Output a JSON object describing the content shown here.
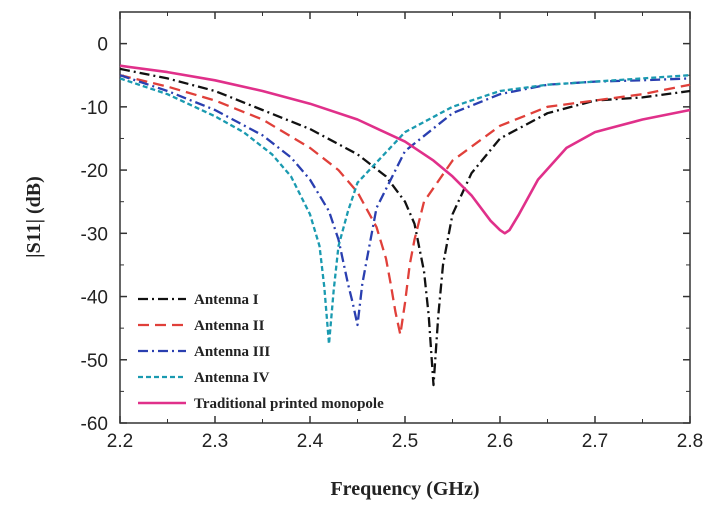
{
  "chart_data": {
    "type": "line",
    "xlabel": "Frequency (GHz)",
    "ylabel": "|S11| (dB)",
    "xlim": [
      2.2,
      2.8
    ],
    "ylim": [
      -60,
      5
    ],
    "xticks": [
      "2.2",
      "2.3",
      "2.4",
      "2.5",
      "2.6",
      "2.7",
      "2.8"
    ],
    "yticks": [
      "0",
      "-10",
      "-20",
      "-30",
      "-40",
      "-50",
      "-60"
    ],
    "legend_position": "bottom-left",
    "series": [
      {
        "name": "Antenna I",
        "color": "#111111",
        "dash": "dash-dot",
        "x": [
          2.2,
          2.25,
          2.3,
          2.35,
          2.4,
          2.45,
          2.48,
          2.5,
          2.51,
          2.52,
          2.525,
          2.53,
          2.535,
          2.54,
          2.55,
          2.57,
          2.6,
          2.65,
          2.7,
          2.75,
          2.8
        ],
        "y": [
          -4,
          -5.5,
          -7.5,
          -10.5,
          -13.5,
          -17.5,
          -21,
          -25,
          -28.5,
          -36,
          -43,
          -54,
          -43,
          -35,
          -27,
          -20.5,
          -15,
          -11,
          -9,
          -8.5,
          -7.5
        ]
      },
      {
        "name": "Antenna II",
        "color": "#e0403a",
        "dash": "dash",
        "x": [
          2.2,
          2.25,
          2.3,
          2.35,
          2.4,
          2.43,
          2.45,
          2.47,
          2.48,
          2.485,
          2.49,
          2.495,
          2.5,
          2.505,
          2.51,
          2.52,
          2.55,
          2.6,
          2.65,
          2.7,
          2.75,
          2.8
        ],
        "y": [
          -5,
          -6.8,
          -9,
          -12,
          -16.5,
          -20,
          -23.5,
          -29,
          -34,
          -38,
          -42.5,
          -46,
          -41,
          -35,
          -31,
          -25,
          -18.5,
          -13,
          -10,
          -9,
          -8,
          -6.5
        ]
      },
      {
        "name": "Antenna III",
        "color": "#2a3fb0",
        "dash": "dash-dot",
        "x": [
          2.2,
          2.25,
          2.3,
          2.35,
          2.38,
          2.4,
          2.42,
          2.43,
          2.44,
          2.445,
          2.45,
          2.455,
          2.46,
          2.47,
          2.5,
          2.55,
          2.6,
          2.65,
          2.7,
          2.75,
          2.8
        ],
        "y": [
          -5,
          -7.5,
          -10.5,
          -14.5,
          -18,
          -21.5,
          -26.5,
          -31,
          -38,
          -41,
          -44.5,
          -38,
          -34,
          -26,
          -17,
          -11,
          -8,
          -6.5,
          -6,
          -5.8,
          -5.5
        ]
      },
      {
        "name": "Antenna IV",
        "color": "#1a9ab0",
        "dash": "dot",
        "x": [
          2.2,
          2.25,
          2.3,
          2.33,
          2.36,
          2.38,
          2.4,
          2.41,
          2.415,
          2.42,
          2.425,
          2.43,
          2.44,
          2.45,
          2.5,
          2.55,
          2.6,
          2.65,
          2.7,
          2.75,
          2.8
        ],
        "y": [
          -5.5,
          -8,
          -11.5,
          -14,
          -17.5,
          -21,
          -27,
          -32,
          -38.5,
          -47.5,
          -39,
          -32,
          -26.5,
          -22,
          -14,
          -10,
          -7.5,
          -6.5,
          -6,
          -5.5,
          -5
        ]
      },
      {
        "name": "Traditional printed monopole",
        "color": "#e0308a",
        "dash": "solid",
        "x": [
          2.2,
          2.25,
          2.3,
          2.35,
          2.4,
          2.45,
          2.5,
          2.53,
          2.55,
          2.57,
          2.59,
          2.6,
          2.605,
          2.61,
          2.62,
          2.64,
          2.67,
          2.7,
          2.75,
          2.8
        ],
        "y": [
          -3.5,
          -4.5,
          -5.8,
          -7.5,
          -9.5,
          -12,
          -15.5,
          -18.5,
          -21,
          -24,
          -28,
          -29.5,
          -30,
          -29.5,
          -27,
          -21.5,
          -16.5,
          -14,
          -12,
          -10.5
        ]
      }
    ]
  }
}
